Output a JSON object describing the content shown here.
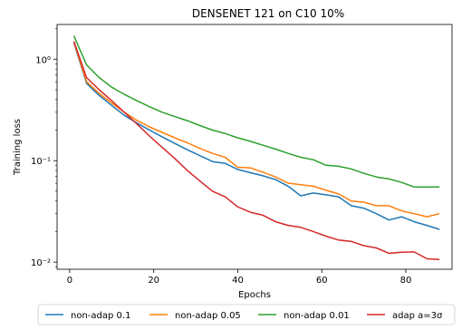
{
  "chart_data": {
    "type": "line",
    "title": "DENSENET 121 on C10 10%",
    "xlabel": "Epochs",
    "ylabel": "Training loss",
    "xlim": [
      -3,
      91
    ],
    "ylim": [
      0.0085,
      2.2
    ],
    "yscale": "log",
    "xticks": [
      0,
      20,
      40,
      60,
      80
    ],
    "yticks": [
      {
        "value": 1,
        "label": "10⁰"
      },
      {
        "value": 0.1,
        "label": "10⁻¹"
      },
      {
        "value": 0.01,
        "label": "10⁻²"
      }
    ],
    "grid": false,
    "legend_position": "bottom",
    "series": [
      {
        "name": "non-adap 0.1",
        "color": "#1f77b4",
        "x": [
          1,
          4,
          7,
          10,
          13,
          16,
          19,
          22,
          25,
          28,
          31,
          34,
          37,
          40,
          43,
          46,
          49,
          52,
          55,
          58,
          61,
          64,
          67,
          70,
          73,
          76,
          79,
          82,
          85,
          88
        ],
        "y": [
          1.45,
          0.58,
          0.44,
          0.35,
          0.28,
          0.235,
          0.2,
          0.172,
          0.148,
          0.128,
          0.112,
          0.098,
          0.094,
          0.082,
          0.076,
          0.071,
          0.065,
          0.056,
          0.045,
          0.048,
          0.046,
          0.044,
          0.036,
          0.034,
          0.03,
          0.026,
          0.028,
          0.025,
          0.023,
          0.021
        ]
      },
      {
        "name": "non-adap 0.05",
        "color": "#ff7f0e",
        "x": [
          1,
          4,
          7,
          10,
          13,
          16,
          19,
          22,
          25,
          28,
          31,
          34,
          37,
          40,
          43,
          46,
          49,
          52,
          55,
          58,
          61,
          64,
          67,
          70,
          73,
          76,
          79,
          82,
          85,
          88
        ],
        "y": [
          1.48,
          0.6,
          0.46,
          0.37,
          0.3,
          0.25,
          0.215,
          0.19,
          0.168,
          0.15,
          0.132,
          0.118,
          0.108,
          0.086,
          0.085,
          0.077,
          0.069,
          0.06,
          0.058,
          0.056,
          0.051,
          0.047,
          0.04,
          0.039,
          0.036,
          0.036,
          0.032,
          0.03,
          0.028,
          0.03
        ]
      },
      {
        "name": "non-adap 0.01",
        "color": "#2ca02c",
        "x": [
          1,
          4,
          7,
          10,
          13,
          16,
          19,
          22,
          25,
          28,
          31,
          34,
          37,
          40,
          43,
          46,
          49,
          52,
          55,
          58,
          61,
          64,
          67,
          70,
          73,
          76,
          79,
          82,
          85,
          88
        ],
        "y": [
          1.7,
          0.88,
          0.66,
          0.53,
          0.45,
          0.39,
          0.34,
          0.3,
          0.272,
          0.248,
          0.222,
          0.2,
          0.185,
          0.168,
          0.155,
          0.142,
          0.13,
          0.118,
          0.108,
          0.102,
          0.09,
          0.088,
          0.083,
          0.075,
          0.069,
          0.066,
          0.061,
          0.055,
          0.055,
          0.055
        ]
      },
      {
        "name": "adap a=3σ",
        "color": "#d62728",
        "x": [
          1,
          4,
          7,
          10,
          13,
          16,
          19,
          22,
          25,
          28,
          31,
          34,
          37,
          40,
          43,
          46,
          49,
          52,
          55,
          58,
          61,
          64,
          67,
          70,
          73,
          76,
          79,
          82,
          85,
          88
        ],
        "y": [
          1.5,
          0.66,
          0.5,
          0.39,
          0.3,
          0.23,
          0.175,
          0.135,
          0.105,
          0.08,
          0.063,
          0.05,
          0.044,
          0.035,
          0.031,
          0.029,
          0.025,
          0.023,
          0.022,
          0.02,
          0.018,
          0.0165,
          0.016,
          0.0145,
          0.0138,
          0.0122,
          0.0125,
          0.0126,
          0.0108,
          0.0106
        ]
      }
    ]
  }
}
